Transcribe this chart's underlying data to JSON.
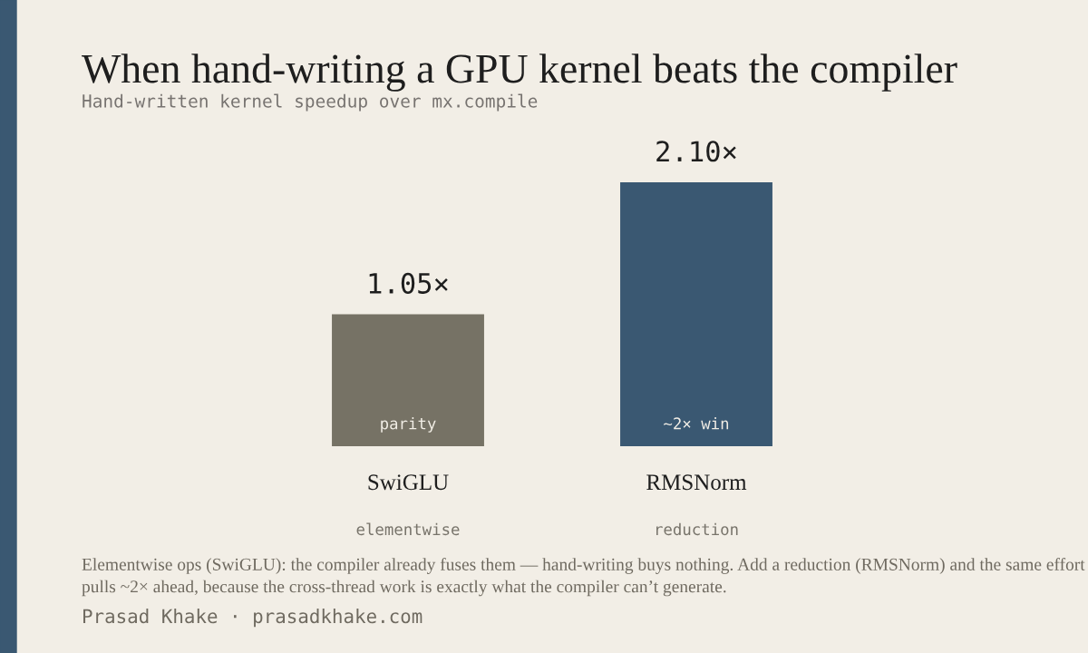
{
  "chart_data": {
    "type": "bar",
    "title": "When hand-writing a GPU kernel beats the compiler",
    "subtitle": "Hand-written kernel speedup over mx.compile",
    "categories": [
      "SwiGLU",
      "RMSNorm"
    ],
    "values": [
      1.05,
      2.1
    ],
    "colors": [
      "#767265",
      "#3a5872"
    ],
    "value_labels": [
      "1.05×",
      "2.10×"
    ],
    "grid": false,
    "legend": false,
    "annotations": [
      "parity",
      "~2× win",
      "elementwise",
      "reduction",
      "Elementwise ops (SwiGLU): the compiler already fuses them — hand-writing buys nothing. Add a reduction (RMSNorm) and the same effort pulls ~2× ahead, because the cross-thread work is exactly what the compiler can’t generate.",
      "Prasad Khake · prasadkhake.com"
    ]
  }
}
